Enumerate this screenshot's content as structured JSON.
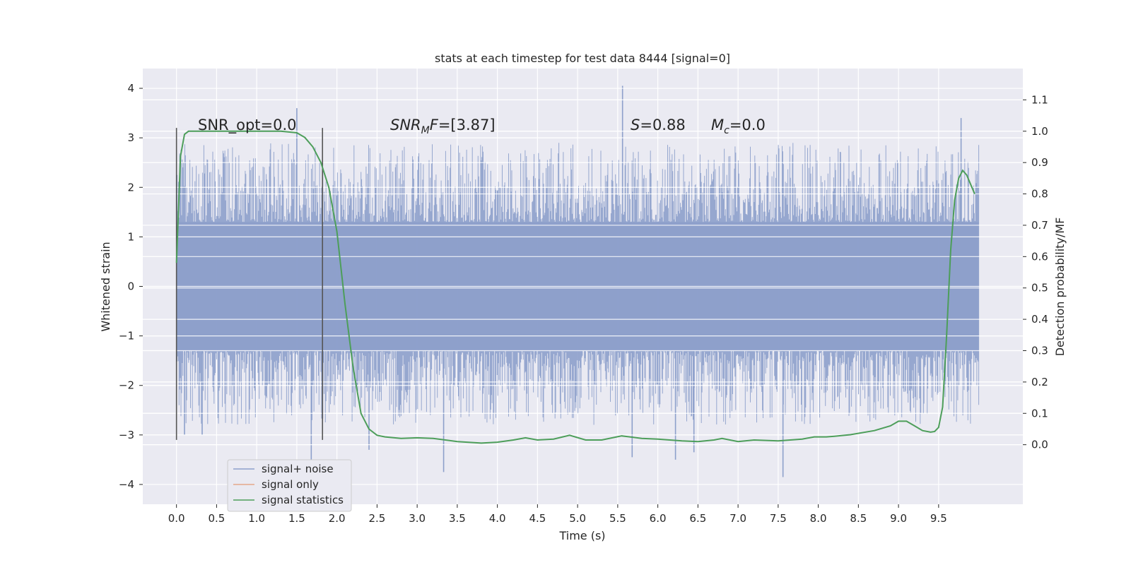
{
  "chart_data": {
    "type": "line",
    "title": "stats at each timestep for test data 8444 [signal=0]",
    "xlabel": "Time (s)",
    "ylabel": "Whitened strain",
    "y2label": "Detection probability/MF",
    "xlim": [
      -0.42,
      10.55
    ],
    "ylim": [
      -4.4,
      4.4
    ],
    "y2lim": [
      -0.19,
      1.2
    ],
    "x_ticks": [
      0.0,
      0.5,
      1.0,
      1.5,
      2.0,
      2.5,
      3.0,
      3.5,
      4.0,
      4.5,
      5.0,
      5.5,
      6.0,
      6.5,
      7.0,
      7.5,
      8.0,
      8.5,
      9.0,
      9.5
    ],
    "x_tick_labels": [
      "0.0",
      "0.5",
      "1.0",
      "1.5",
      "2.0",
      "2.5",
      "3.0",
      "3.5",
      "4.0",
      "4.5",
      "5.0",
      "5.5",
      "6.0",
      "6.5",
      "7.0",
      "7.5",
      "8.0",
      "8.5",
      "9.0",
      "9.5"
    ],
    "y_ticks": [
      -4,
      -3,
      -2,
      -1,
      0,
      1,
      2,
      3,
      4
    ],
    "y_tick_labels": [
      "−4",
      "−3",
      "−2",
      "−1",
      "0",
      "1",
      "2",
      "3",
      "4"
    ],
    "y2_ticks": [
      0.0,
      0.1,
      0.2,
      0.3,
      0.4,
      0.5,
      0.6,
      0.7,
      0.8,
      0.9,
      1.0,
      1.1
    ],
    "y2_tick_labels": [
      "0.0",
      "0.1",
      "0.2",
      "0.3",
      "0.4",
      "0.5",
      "0.6",
      "0.7",
      "0.8",
      "0.9",
      "1.0",
      "1.1"
    ],
    "grid": true,
    "legend_position": "lower-left",
    "annotations": {
      "snr_opt": "SNR_opt=0.0",
      "snr_mf_main": "SNR",
      "snr_mf_sub": "M",
      "snr_mf_rest": "F",
      "snr_mf_value": "=[3.87]",
      "s_var": "S",
      "s_value": "=0.88",
      "mc_var": "M",
      "mc_sub": "c",
      "mc_value": "=0.0"
    },
    "vertical_markers": [
      {
        "x": 0.0,
        "y_range": [
          -3.1,
          3.2
        ]
      },
      {
        "x": 1.82,
        "y_range": [
          -3.1,
          3.2
        ]
      }
    ],
    "series": [
      {
        "name": "signal+ noise",
        "color": "#8da0cb",
        "axis": "left",
        "kind": "noise",
        "x_range": [
          0.0,
          10.0
        ],
        "dense_band": [
          -1.3,
          1.3
        ],
        "spike_peaks": [
          {
            "x": 1.5,
            "y": 3.6
          },
          {
            "x": 5.56,
            "y": 4.05
          },
          {
            "x": 9.78,
            "y": 3.4
          },
          {
            "x": 1.68,
            "y": -3.6
          },
          {
            "x": 3.33,
            "y": -3.75
          },
          {
            "x": 7.56,
            "y": -3.85
          },
          {
            "x": 5.68,
            "y": -3.45
          },
          {
            "x": 6.22,
            "y": -3.5
          },
          {
            "x": 2.4,
            "y": -3.3
          },
          {
            "x": 6.45,
            "y": -3.35
          },
          {
            "x": 0.1,
            "y": -3.0
          },
          {
            "x": 0.32,
            "y": -3.0
          }
        ]
      },
      {
        "name": "signal only",
        "color": "#e5a88a",
        "axis": "left",
        "kind": "line",
        "x": [],
        "y": []
      },
      {
        "name": "signal statistics",
        "color": "#4d9e5a",
        "axis": "right",
        "kind": "line",
        "x": [
          0.0,
          0.05,
          0.1,
          0.15,
          0.2,
          0.3,
          0.5,
          1.0,
          1.3,
          1.5,
          1.6,
          1.7,
          1.8,
          1.9,
          2.0,
          2.1,
          2.2,
          2.3,
          2.4,
          2.5,
          2.6,
          2.8,
          3.0,
          3.2,
          3.5,
          3.8,
          4.0,
          4.2,
          4.35,
          4.5,
          4.7,
          4.9,
          5.1,
          5.3,
          5.55,
          5.8,
          6.0,
          6.3,
          6.5,
          6.7,
          6.8,
          7.0,
          7.2,
          7.5,
          7.8,
          7.95,
          8.1,
          8.2,
          8.4,
          8.7,
          8.9,
          9.0,
          9.1,
          9.2,
          9.3,
          9.4,
          9.45,
          9.5,
          9.55,
          9.6,
          9.65,
          9.7,
          9.75,
          9.8,
          9.85,
          9.9,
          9.95
        ],
        "y": [
          0.58,
          0.92,
          0.99,
          1.0,
          1.0,
          1.0,
          1.0,
          1.0,
          1.0,
          0.995,
          0.98,
          0.95,
          0.9,
          0.82,
          0.68,
          0.45,
          0.25,
          0.1,
          0.05,
          0.03,
          0.025,
          0.02,
          0.022,
          0.02,
          0.01,
          0.005,
          0.008,
          0.015,
          0.022,
          0.015,
          0.018,
          0.03,
          0.015,
          0.015,
          0.028,
          0.02,
          0.018,
          0.012,
          0.01,
          0.015,
          0.02,
          0.01,
          0.015,
          0.012,
          0.018,
          0.025,
          0.025,
          0.027,
          0.032,
          0.045,
          0.06,
          0.075,
          0.075,
          0.06,
          0.045,
          0.04,
          0.042,
          0.055,
          0.12,
          0.35,
          0.62,
          0.78,
          0.85,
          0.875,
          0.86,
          0.83,
          0.8
        ]
      }
    ]
  }
}
